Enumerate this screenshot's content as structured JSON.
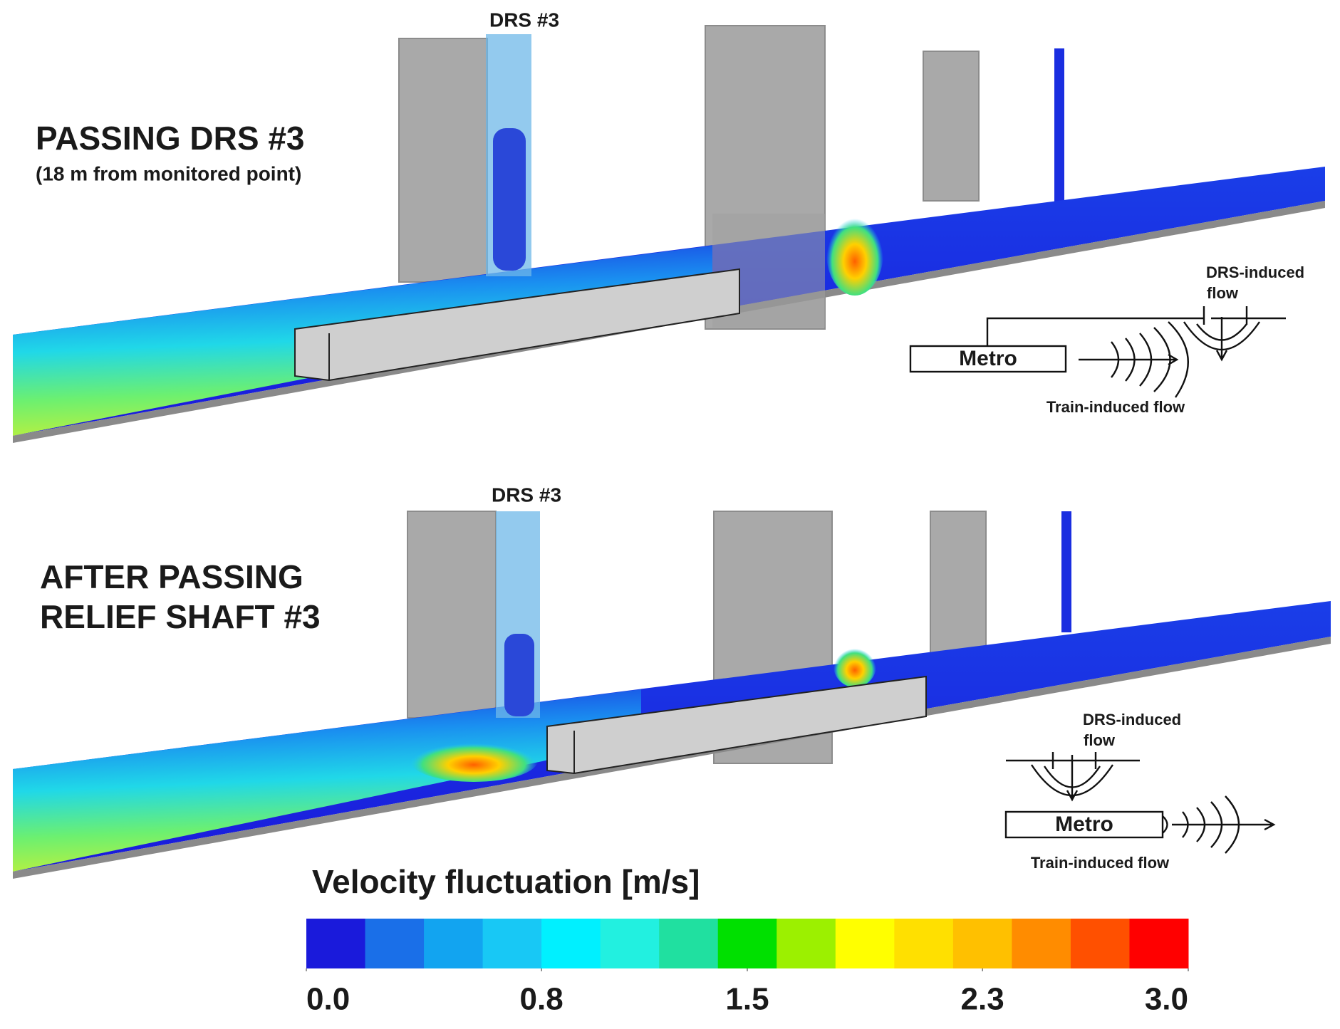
{
  "panels": [
    {
      "title": [
        "PASSING DRS #3"
      ],
      "subtitle": "(18 m from monitored point)",
      "shaft_label": "DRS #3",
      "inset": {
        "train": "Metro",
        "drs_flow": [
          "DRS-induced",
          "flow"
        ],
        "train_flow": "Train-induced flow"
      }
    },
    {
      "title": [
        "AFTER PASSING",
        "RELIEF SHAFT #3"
      ],
      "shaft_label": "DRS #3",
      "inset": {
        "train": "Metro",
        "drs_flow": [
          "DRS-induced",
          "flow"
        ],
        "train_flow": "Train-induced flow"
      }
    }
  ],
  "colorbar": {
    "title": "Velocity fluctuation [m/s]",
    "range": [
      0,
      3
    ],
    "colors": [
      "#1a1adb",
      "#1a6fe8",
      "#12a4f0",
      "#18c8f5",
      "#00f0ff",
      "#22f0e0",
      "#20e0a0",
      "#00e000",
      "#9cf000",
      "#ffff00",
      "#ffe000",
      "#ffc000",
      "#ff8c00",
      "#ff5000",
      "#ff0000"
    ],
    "ticks": [
      {
        "value": 0,
        "label": "0.0"
      },
      {
        "value": 0.8,
        "label": "0.8"
      },
      {
        "value": 1.5,
        "label": "1.5"
      },
      {
        "value": 2.3,
        "label": "2.3"
      },
      {
        "value": 3,
        "label": "3.0"
      }
    ]
  }
}
